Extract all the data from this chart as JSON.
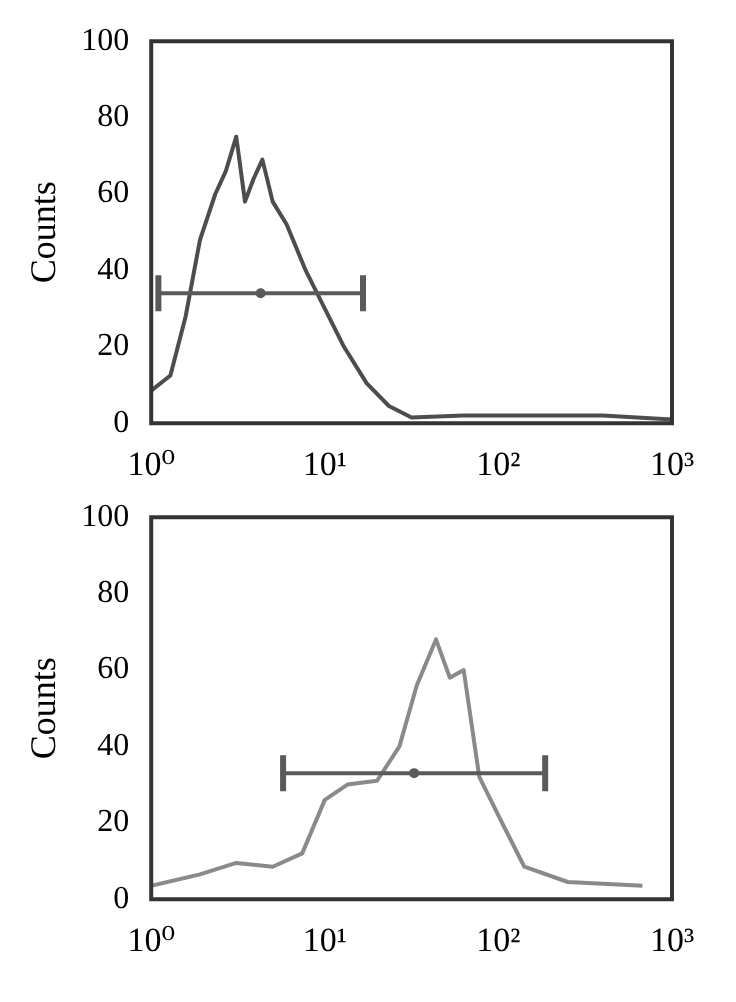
{
  "chart_data": [
    {
      "type": "line",
      "ylabel": "Counts",
      "log": "x",
      "xlim": [
        1,
        1000
      ],
      "ylim": [
        0,
        100
      ],
      "yticks": [
        0,
        20,
        40,
        60,
        80,
        100
      ],
      "xticks": [
        {
          "value": 1,
          "label": "10⁰"
        },
        {
          "value": 10,
          "label": "10¹"
        },
        {
          "value": 100,
          "label": "10²"
        },
        {
          "value": 1000,
          "label": "10³"
        }
      ],
      "grid": false,
      "legend": false,
      "series": [
        {
          "color": "#4d4d4d",
          "marker": "none",
          "x": [
            1,
            1.29,
            1.58,
            1.91,
            2.34,
            2.69,
            3.09,
            3.47,
            3.89,
            4.37,
            5.01,
            6.03,
            7.76,
            10,
            12.9,
            17.4,
            23.4,
            31.6,
            63,
            158,
            398,
            1000
          ],
          "values": [
            8.5,
            12.5,
            28,
            48,
            60,
            66,
            75,
            58,
            64,
            69,
            58,
            52,
            40,
            30,
            20,
            10.5,
            4.5,
            1.5,
            2,
            2,
            2,
            1
          ]
        },
        {
          "type": "scatter",
          "color": "#5a5a5a",
          "marker": "circle",
          "x": [
            4.27
          ],
          "values": [
            34
          ],
          "xerrors": [
            [
              1.1,
              16.6
            ]
          ]
        }
      ]
    },
    {
      "type": "line",
      "ylabel": "Counts",
      "log": "x",
      "xlim": [
        1,
        1000
      ],
      "ylim": [
        0,
        100
      ],
      "yticks": [
        0,
        20,
        40,
        60,
        80,
        100
      ],
      "xticks": [
        {
          "value": 1,
          "label": "10⁰"
        },
        {
          "value": 10,
          "label": "10¹"
        },
        {
          "value": 100,
          "label": "10²"
        },
        {
          "value": 1000,
          "label": "10³"
        }
      ],
      "grid": false,
      "legend": false,
      "series": [
        {
          "color": "#8a8a8a",
          "marker": "none",
          "x": [
            1,
            1.91,
            3.09,
            5.01,
            7.41,
            10,
            13.5,
            20,
            26.9,
            33.9,
            43.7,
            52.5,
            63.1,
            77.6,
            105,
            141,
            251,
            676
          ],
          "values": [
            3.5,
            6.5,
            9.5,
            8.5,
            12,
            26,
            30,
            31,
            40,
            56,
            68,
            58,
            60,
            32,
            20,
            8.5,
            4.5,
            3.5
          ]
        },
        {
          "type": "scatter",
          "color": "#5a5a5a",
          "marker": "circle",
          "x": [
            32.7
          ],
          "values": [
            33
          ],
          "xerrors": [
            [
              5.75,
              186
            ]
          ]
        }
      ]
    }
  ]
}
